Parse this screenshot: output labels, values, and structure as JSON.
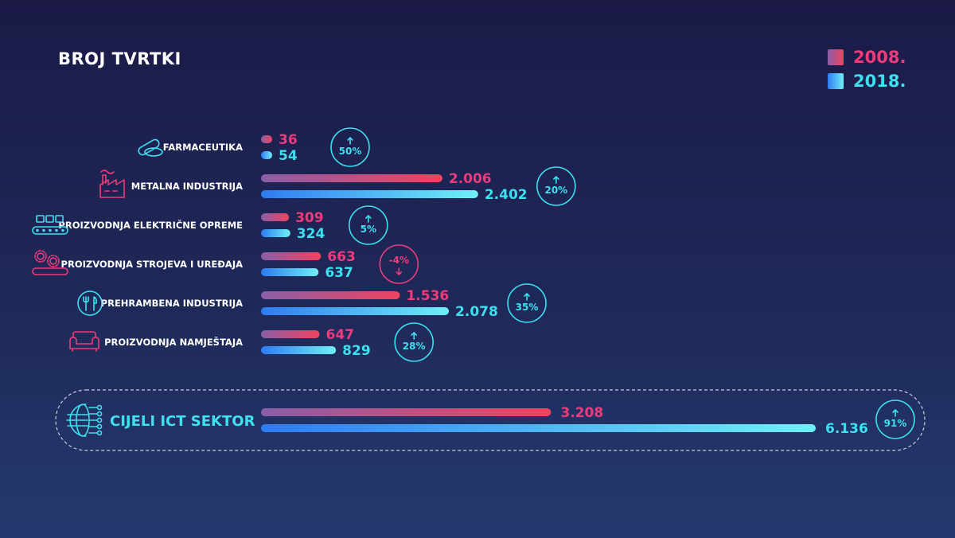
{
  "colors": {
    "c2008_start": "#8a5fa8",
    "c2008_end": "#f0435f",
    "c2018_start": "#2f7bf2",
    "c2018_end": "#6ff0f7",
    "label2008": "#ee3b7b",
    "label2018": "#3ee0f0",
    "up": "#3ee0f0",
    "down": "#ee3b7b"
  },
  "chart_data": {
    "type": "bar",
    "title": "BROJ TVRTKI",
    "legend": [
      {
        "name": "2008.",
        "key": "y2008"
      },
      {
        "name": "2018.",
        "key": "y2018"
      }
    ],
    "legend_position": "top-right",
    "categories": [
      {
        "label": "FARMACEUTIKA",
        "icon": "pill-icon",
        "y2008": 36,
        "y2008_label": "36",
        "y2018": 54,
        "y2018_label": "54",
        "change": "50%",
        "direction": "up"
      },
      {
        "label": "METALNA INDUSTRIJA",
        "icon": "factory-icon",
        "y2008": 2006,
        "y2008_label": "2.006",
        "y2018": 2402,
        "y2018_label": "2.402",
        "change": "20%",
        "direction": "up"
      },
      {
        "label": "PROIZVODNJA ELEKTRIČNE OPREME",
        "icon": "conveyor-icon",
        "y2008": 309,
        "y2008_label": "309",
        "y2018": 324,
        "y2018_label": "324",
        "change": "5%",
        "direction": "up"
      },
      {
        "label": "PROIZVODNJA STROJEVA I UREĐAJA",
        "icon": "gears-icon",
        "y2008": 663,
        "y2008_label": "663",
        "y2018": 637,
        "y2018_label": "637",
        "change": "-4%",
        "direction": "down"
      },
      {
        "label": "PREHRAMBENA INDUSTRIJA",
        "icon": "cutlery-icon",
        "y2008": 1536,
        "y2008_label": "1.536",
        "y2018": 2078,
        "y2018_label": "2.078",
        "change": "35%",
        "direction": "up"
      },
      {
        "label": "PROIZVODNJA NAMJEŠTAJA",
        "icon": "sofa-icon",
        "y2008": 647,
        "y2008_label": "647",
        "y2018": 829,
        "y2018_label": "829",
        "change": "28%",
        "direction": "up"
      }
    ],
    "total": {
      "label": "CIJELI ICT SEKTOR",
      "icon": "globe-network-icon",
      "y2008": 3208,
      "y2008_label": "3.208",
      "y2018": 6136,
      "y2018_label": "6.136",
      "change": "91%",
      "direction": "up"
    },
    "xlim": [
      0,
      6136
    ]
  }
}
